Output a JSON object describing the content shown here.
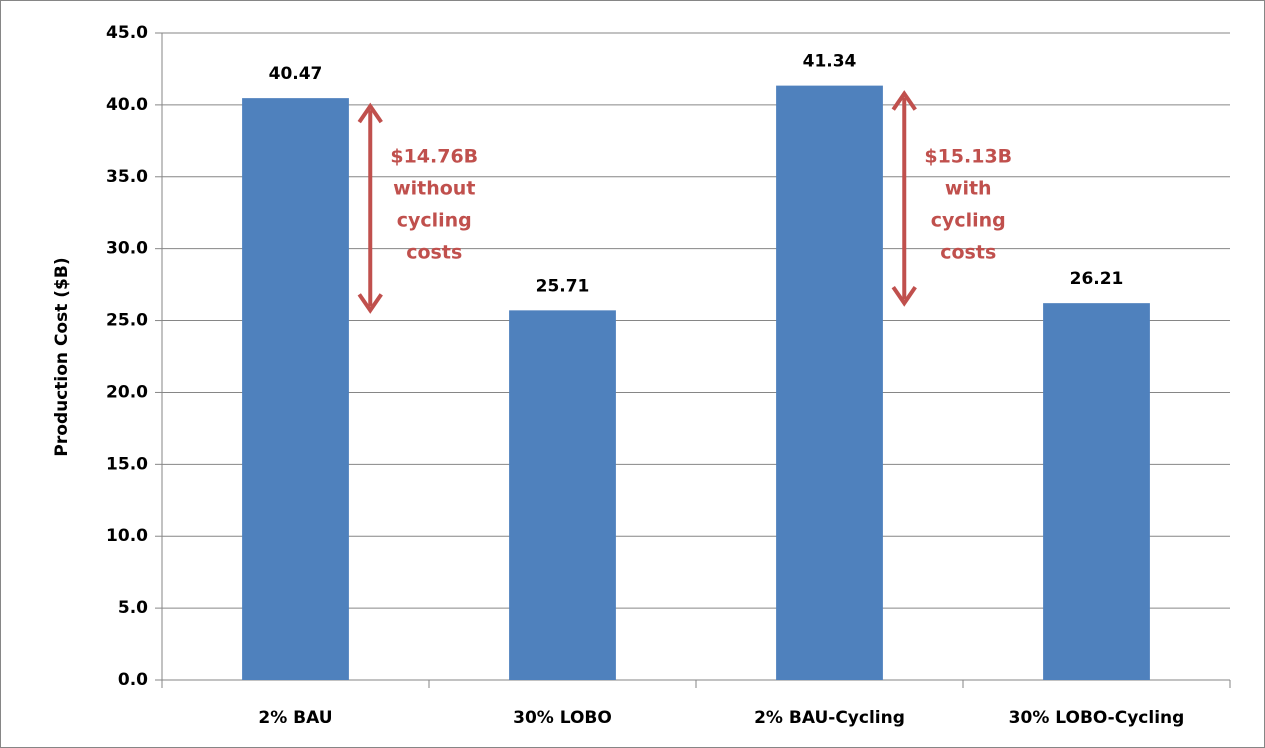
{
  "chart_data": {
    "type": "bar",
    "y_label": "Production Cost ($B)",
    "categories": [
      "2% BAU",
      "30% LOBO",
      "2% BAU-Cycling",
      "30% LOBO-Cycling"
    ],
    "values": [
      40.47,
      25.71,
      41.34,
      26.21
    ],
    "color": "#4f81bd",
    "ylim": [
      0,
      45
    ],
    "yticks": [
      {
        "value": 0,
        "label": "0.0"
      },
      {
        "value": 5,
        "label": "5.0"
      },
      {
        "value": 10,
        "label": "10.0"
      },
      {
        "value": 15,
        "label": "15.0"
      },
      {
        "value": 20,
        "label": "20.0"
      },
      {
        "value": 25,
        "label": "25.0"
      },
      {
        "value": 30,
        "label": "30.0"
      },
      {
        "value": 35,
        "label": "35.0"
      },
      {
        "value": 40,
        "label": "40.0"
      },
      {
        "value": 45,
        "label": "45.0"
      }
    ],
    "grid": true,
    "annotations": [
      {
        "lines": [
          "$14.76B",
          "without",
          "cycling",
          "costs"
        ],
        "color": "#c0504d"
      },
      {
        "lines": [
          "$15.13B",
          "with",
          "cycling",
          "costs"
        ],
        "color": "#c0504d"
      }
    ]
  }
}
